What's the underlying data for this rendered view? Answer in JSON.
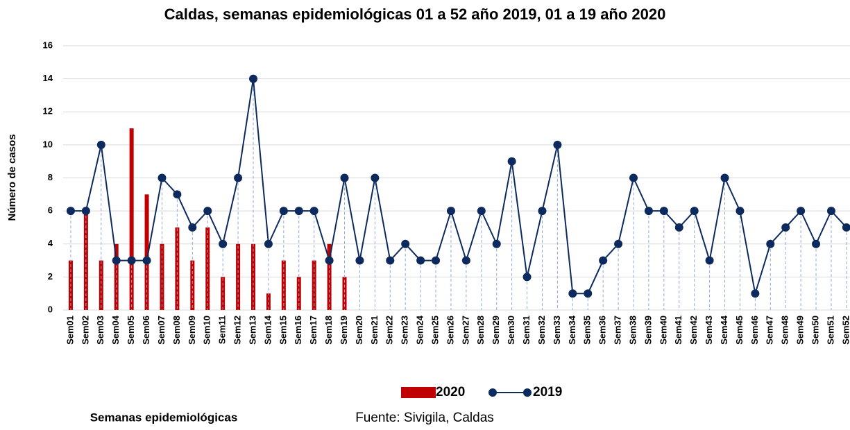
{
  "chart_data": {
    "type": "bar_line",
    "title": "Caldas, semanas epidemiológicas 01 a 52 año  2019, 01 a 19 año 2020",
    "y_label": "Número de casos",
    "x_label": "Semanas epidemiológicas",
    "source": "Fuente: Sivigila, Caldas",
    "categories": [
      "Sem01",
      "Sem02",
      "Sem03",
      "Sem04",
      "Sem05",
      "Sem06",
      "Sem07",
      "Sem08",
      "Sem09",
      "Sem10",
      "Sem11",
      "Sem12",
      "Sem13",
      "Sem14",
      "Sem15",
      "Sem16",
      "Sem17",
      "Sem18",
      "Sem19",
      "Sem20",
      "Sem21",
      "Sem22",
      "Sem23",
      "Sem24",
      "Sem25",
      "Sem26",
      "Sem27",
      "Sem28",
      "Sem29",
      "Sem30",
      "Sem31",
      "Sem32",
      "Sem33",
      "Sem34",
      "Sem35",
      "Sem36",
      "Sem37",
      "Sem38",
      "Sem39",
      "Sem40",
      "Sem41",
      "Sem42",
      "Sem43",
      "Sem44",
      "Sem45",
      "Sem46",
      "Sem47",
      "Sem48",
      "Sem49",
      "Sem50",
      "Sem51",
      "Sem52"
    ],
    "series": [
      {
        "name": "2020",
        "type": "bar",
        "color": "#c00000",
        "values": [
          3,
          6,
          3,
          4,
          11,
          7,
          4,
          5,
          3,
          5,
          2,
          4,
          4,
          1,
          3,
          2,
          3,
          4,
          2,
          null,
          null,
          null,
          null,
          null,
          null,
          null,
          null,
          null,
          null,
          null,
          null,
          null,
          null,
          null,
          null,
          null,
          null,
          null,
          null,
          null,
          null,
          null,
          null,
          null,
          null,
          null,
          null,
          null,
          null,
          null,
          null,
          null
        ]
      },
      {
        "name": "2019",
        "type": "line",
        "color": "#0d2a5e",
        "values": [
          6,
          6,
          10,
          3,
          3,
          3,
          8,
          7,
          5,
          6,
          4,
          8,
          14,
          4,
          6,
          6,
          6,
          3,
          8,
          3,
          8,
          3,
          4,
          3,
          3,
          6,
          3,
          6,
          4,
          9,
          2,
          6,
          10,
          1,
          1,
          3,
          4,
          8,
          6,
          6,
          5,
          6,
          3,
          8,
          6,
          1,
          4,
          5,
          6,
          4,
          6,
          5
        ]
      }
    ],
    "ylim": [
      0,
      16
    ],
    "yticks": [
      0,
      2,
      4,
      6,
      8,
      10,
      12,
      14,
      16
    ],
    "grid": true
  }
}
